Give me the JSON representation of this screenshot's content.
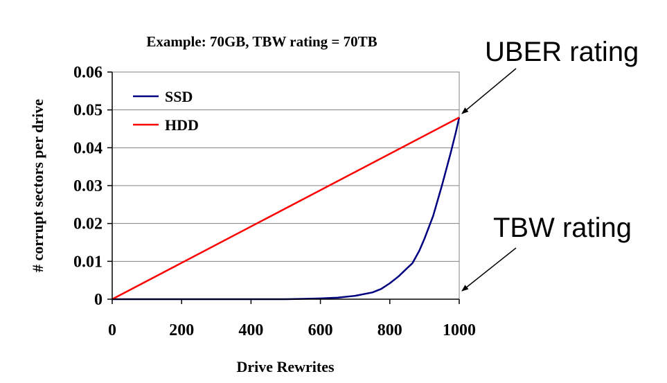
{
  "chart_data": {
    "type": "line",
    "title": "Example: 70GB, TBW rating = 70TB",
    "xlabel": "Drive Rewrites",
    "ylabel": "# corrupt sectors per drive",
    "xlim": [
      0,
      1000
    ],
    "ylim": [
      0,
      0.06
    ],
    "xticks": [
      "0",
      "200",
      "400",
      "600",
      "800",
      "1000"
    ],
    "yticks": [
      "0",
      "0.01",
      "0.02",
      "0.03",
      "0.04",
      "0.05",
      "0.06"
    ],
    "grid": "horizontal",
    "legend_position": "top-left",
    "series": [
      {
        "name": "SSD",
        "color": "#000080",
        "x": [
          0,
          100,
          200,
          300,
          400,
          500,
          550,
          600,
          650,
          700,
          750,
          775,
          800,
          825,
          850,
          865,
          885,
          900,
          925,
          950,
          975,
          990,
          1000
        ],
        "y": [
          0,
          0,
          0,
          0,
          0,
          0,
          0.0001,
          0.0002,
          0.0004,
          0.0009,
          0.0018,
          0.0027,
          0.0042,
          0.006,
          0.0082,
          0.0095,
          0.0128,
          0.016,
          0.022,
          0.03,
          0.0385,
          0.044,
          0.048
        ]
      },
      {
        "name": "HDD",
        "color": "#ff0000",
        "x": [
          0,
          1000
        ],
        "y": [
          0,
          0.048
        ]
      }
    ],
    "annotations": [
      {
        "text": "UBER rating",
        "points_to": {
          "x": 1000,
          "y": 0.048
        }
      },
      {
        "text": "TBW rating",
        "points_to": {
          "x": 1000,
          "y": 0
        }
      }
    ]
  }
}
